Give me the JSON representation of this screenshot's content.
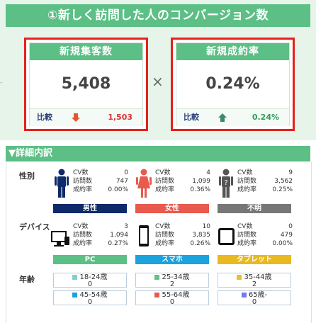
{
  "header": {
    "title": "①新しく訪問した人のコンバージョン数"
  },
  "kpi": {
    "new_visitors": {
      "title": "新規集客数",
      "value": "5,408",
      "compare_label": "比較",
      "compare_value": "1,503"
    },
    "new_cvr": {
      "title": "新規成約率",
      "value": "0.24%",
      "compare_label": "比較",
      "compare_value": "0.24%"
    },
    "operator": "×"
  },
  "detail": {
    "title": "▼詳細内訳",
    "gender_label": "性別",
    "device_label": "デバイス",
    "age_label": "年齢",
    "stat_labels": {
      "cv": "CV数",
      "visits": "訪問数",
      "rate": "成約率"
    },
    "gender": [
      {
        "name": "男性",
        "cv": "0",
        "visits": "747",
        "rate": "0.00%"
      },
      {
        "name": "女性",
        "cv": "4",
        "visits": "1,099",
        "rate": "0.36%"
      },
      {
        "name": "不明",
        "cv": "9",
        "visits": "3,562",
        "rate": "0.25%"
      }
    ],
    "device": [
      {
        "name": "PC",
        "cv": "3",
        "visits": "1,094",
        "rate": "0.27%"
      },
      {
        "name": "スマホ",
        "cv": "10",
        "visits": "3,835",
        "rate": "0.26%"
      },
      {
        "name": "タブレット",
        "cv": "0",
        "visits": "479",
        "rate": "0.00%"
      }
    ],
    "age": [
      {
        "label": "18-24歳",
        "value": "0"
      },
      {
        "label": "25-34歳",
        "value": "2"
      },
      {
        "label": "35-44歳",
        "value": "2"
      },
      {
        "label": "45-54歳",
        "value": "0"
      },
      {
        "label": "55-64歳",
        "value": "0"
      },
      {
        "label": "65歳-",
        "value": "0"
      }
    ]
  },
  "colors": {
    "green": "#5cbf85",
    "red_frame": "#e8201a",
    "male": "#0e2a68",
    "female": "#e8594e",
    "unknown": "#777777",
    "pc": "#5cbf85",
    "smartphone": "#1aa3dd",
    "tablet": "#e8b920",
    "age_18_24": "#7fd2d0",
    "age_25_34": "#66c08a",
    "age_35_44": "#e8c12a",
    "age_45_54": "#1aa3dd",
    "age_55_64": "#e8594e",
    "age_65": "#7777ee"
  }
}
